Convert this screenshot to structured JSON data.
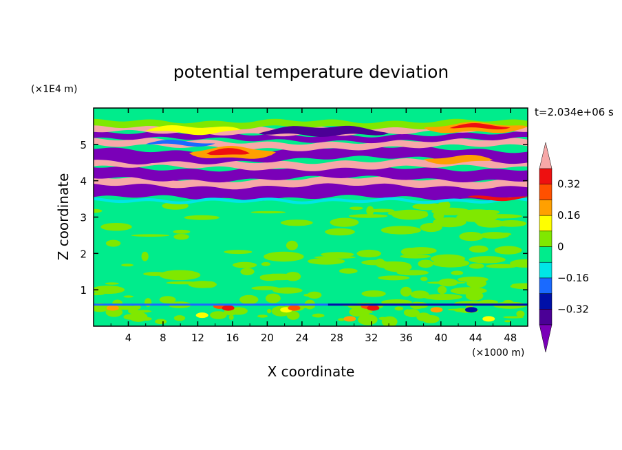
{
  "chart_data": {
    "type": "heatmap",
    "title": "potential temperature deviation",
    "xlabel": "X coordinate",
    "ylabel": "Z coordinate",
    "x_unit": "(×1000 m)",
    "y_unit": "(×1E4 m)",
    "time_label": "t=2.034e+06 s",
    "xlim": [
      0,
      50
    ],
    "ylim": [
      0,
      6
    ],
    "x_ticks": [
      4,
      8,
      12,
      16,
      20,
      24,
      28,
      32,
      36,
      40,
      44,
      48
    ],
    "x_tick_labels": [
      "4",
      "8",
      "12",
      "16",
      "20",
      "24",
      "28",
      "32",
      "36",
      "40",
      "44",
      "48"
    ],
    "y_ticks": [
      1,
      2,
      3,
      4,
      5
    ],
    "y_tick_labels": [
      "1",
      "2",
      "3",
      "4",
      "5"
    ],
    "colorbar": {
      "levels": [
        -0.4,
        -0.32,
        -0.24,
        -0.16,
        -0.08,
        0,
        0.08,
        0.16,
        0.24,
        0.32,
        0.4
      ],
      "labels": [
        {
          "value": 0.32,
          "text": "0.32"
        },
        {
          "value": 0.16,
          "text": "0.16"
        },
        {
          "value": 0,
          "text": "0"
        },
        {
          "value": -0.16,
          "text": "−0.16"
        },
        {
          "value": -0.32,
          "text": "−0.32"
        }
      ],
      "colors": [
        "#7a00b8",
        "#4b0096",
        "#0010a8",
        "#1a6aff",
        "#00e6e6",
        "#00ec8c",
        "#80e800",
        "#ffff00",
        "#ffa000",
        "#ff5000",
        "#ee1010",
        "#f7a8a8"
      ],
      "extend": "both"
    },
    "background_color": "#00ec8c",
    "regions": [
      {
        "level_color": 6,
        "z_range": [
          0,
          3.4
        ],
        "note": "patchy green/light-green lower layer"
      },
      {
        "level_color": 11,
        "z_range": [
          3.5,
          5.2
        ],
        "note": "alternating pink and purple bands"
      },
      {
        "level_color": 0,
        "z_range": [
          3.5,
          5.5
        ],
        "note": "purple bands"
      }
    ]
  }
}
